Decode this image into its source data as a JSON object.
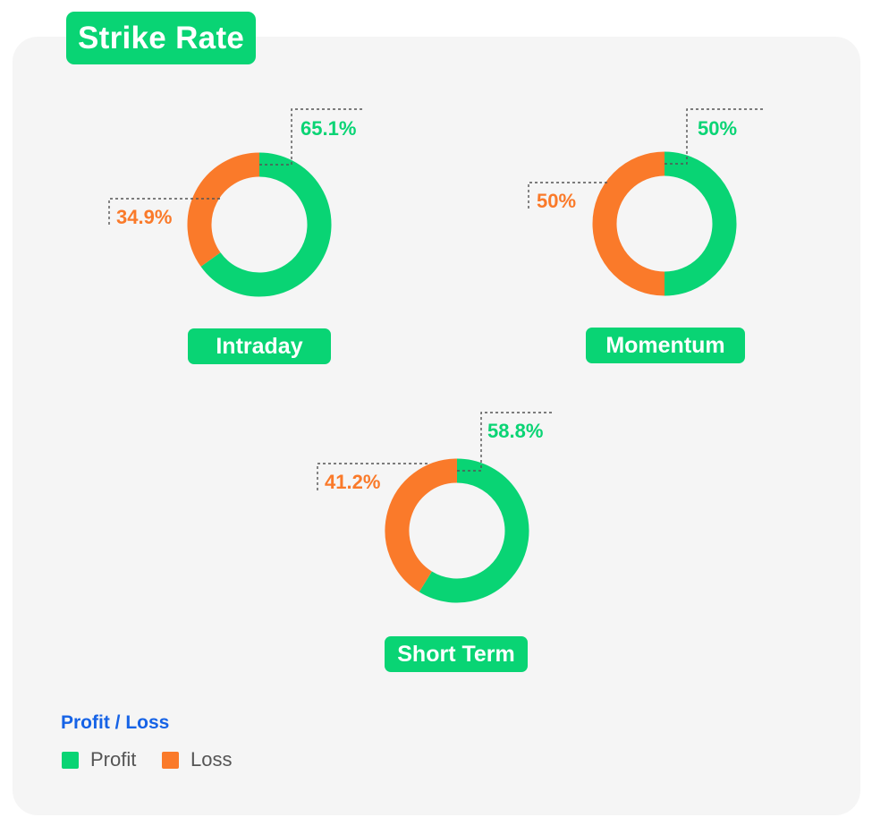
{
  "title": "Strike Rate",
  "colors": {
    "profit": "#09d474",
    "loss": "#fa7a2a",
    "legend_title": "#1663e6"
  },
  "chart_data": {
    "type": "donut",
    "title": "Strike Rate",
    "charts": [
      {
        "name": "Intraday",
        "profit": 65.1,
        "loss": 34.9,
        "profit_label": "65.1%",
        "loss_label": "34.9%"
      },
      {
        "name": "Momentum",
        "profit": 50,
        "loss": 50,
        "profit_label": "50%",
        "loss_label": "50%"
      },
      {
        "name": "Short Term",
        "profit": 58.8,
        "loss": 41.2,
        "profit_label": "58.8%",
        "loss_label": "41.2%"
      }
    ],
    "legend": {
      "title": "Profit / Loss",
      "items": [
        {
          "label": "Profit",
          "color": "#09d474"
        },
        {
          "label": "Loss",
          "color": "#fa7a2a"
        }
      ],
      "position": "bottom-left"
    }
  }
}
